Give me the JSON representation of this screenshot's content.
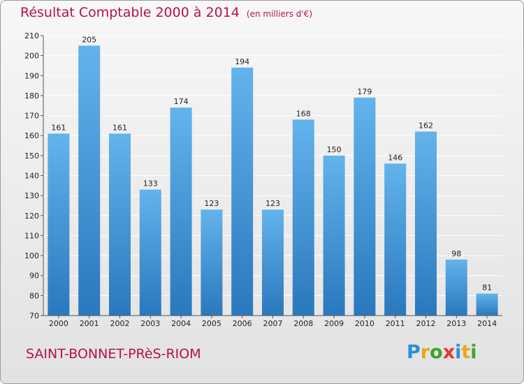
{
  "header": {
    "title": "Résultat Comptable 2000 à 2014",
    "unit": "(en milliers d'€)"
  },
  "footer": {
    "city": "SAINT-BONNET-PRèS-RIOM",
    "logo_letters": [
      "P",
      "r",
      "o",
      "x",
      "i",
      "t",
      "i"
    ],
    "logo_colors": [
      "#2a8fd6",
      "#e8a71a",
      "#3aa52b",
      "#e23a2d",
      "#2a8fd6",
      "#e8a71a",
      "#3aa52b"
    ]
  },
  "colors": {
    "bar_light": "#63b3ec",
    "bar_dark": "#2a78bd",
    "title": "#b3124f"
  },
  "chart_data": {
    "type": "bar",
    "title": "Résultat Comptable 2000 à 2014",
    "categories": [
      "2000",
      "2001",
      "2002",
      "2003",
      "2004",
      "2005",
      "2006",
      "2007",
      "2008",
      "2009",
      "2010",
      "2011",
      "2012",
      "2013",
      "2014"
    ],
    "values": [
      161,
      205,
      161,
      133,
      174,
      123,
      194,
      123,
      168,
      150,
      179,
      146,
      162,
      98,
      81
    ],
    "ylim": [
      70,
      210
    ],
    "yticks": [
      70,
      80,
      90,
      100,
      110,
      120,
      130,
      140,
      150,
      160,
      170,
      180,
      190,
      200,
      210
    ],
    "grid": true
  }
}
